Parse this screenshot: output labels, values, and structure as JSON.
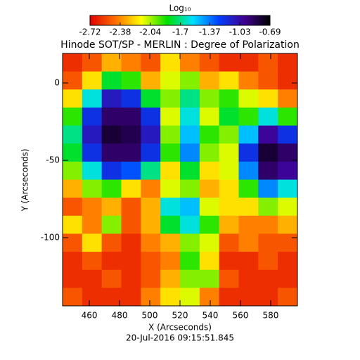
{
  "chart_data": {
    "type": "heatmap",
    "colorbar_title": "Log₁₀",
    "title": "Hinode SOT/SP - MERLIN : Degree of Polarization",
    "x_label": "X (Arcseconds)",
    "y_label": "Y (Arcseconds)",
    "footer": "20-Jul-2016 09:15:51.845",
    "xlim": [
      442.3,
      597.7
    ],
    "ylim": [
      -144.1,
      19.1
    ],
    "xticks": [
      460,
      480,
      500,
      520,
      540,
      560,
      580
    ],
    "yticks": [
      0,
      -50,
      -100
    ],
    "clim": [
      -2.72,
      -0.69
    ],
    "cticks": [
      -2.72,
      -2.38,
      -2.04,
      -1.7,
      -1.37,
      -1.03,
      -0.69
    ],
    "colorscale": [
      "#e00000",
      "#ff7000",
      "#ffff00",
      "#00e000",
      "#00e0ff",
      "#0040ff",
      "#400090",
      "#000000"
    ],
    "z": [
      [
        -2.6,
        -2.5,
        -2.3,
        -2.4,
        -2.5,
        -2.2,
        -2.4,
        -2.5,
        -2.6,
        -2.6,
        -2.5,
        -2.6
      ],
      [
        -2.5,
        -2.2,
        -1.8,
        -1.9,
        -2.3,
        -2.1,
        -2.0,
        -2.3,
        -2.2,
        -2.4,
        -2.5,
        -2.6
      ],
      [
        -2.2,
        -1.6,
        -1.1,
        -1.2,
        -1.8,
        -2.0,
        -1.7,
        -2.0,
        -1.9,
        -2.1,
        -2.2,
        -2.4
      ],
      [
        -1.9,
        -1.2,
        -0.9,
        -0.9,
        -1.2,
        -2.1,
        -1.6,
        -2.1,
        -1.8,
        -1.9,
        -1.6,
        -1.9
      ],
      [
        -1.7,
        -1.1,
        -0.8,
        -0.85,
        -1.1,
        -2.0,
        -1.5,
        -1.9,
        -2.0,
        -1.5,
        -1.0,
        -1.2
      ],
      [
        -1.8,
        -1.2,
        -0.9,
        -0.9,
        -1.2,
        -1.9,
        -1.4,
        -2.0,
        -2.1,
        -1.2,
        -0.8,
        -0.9
      ],
      [
        -2.0,
        -1.6,
        -1.2,
        -1.3,
        -1.7,
        -2.2,
        -1.8,
        -2.2,
        -2.1,
        -1.4,
        -0.9,
        -1.0
      ],
      [
        -2.3,
        -2.0,
        -1.9,
        -2.2,
        -2.4,
        -2.1,
        -2.0,
        -2.3,
        -2.2,
        -1.9,
        -1.4,
        -1.6
      ],
      [
        -2.5,
        -2.4,
        -2.3,
        -2.5,
        -2.3,
        -1.6,
        -1.5,
        -2.1,
        -2.2,
        -2.2,
        -2.0,
        -2.1
      ],
      [
        -2.2,
        -2.4,
        -2.0,
        -2.5,
        -2.3,
        -1.8,
        -1.6,
        -1.9,
        -2.3,
        -2.4,
        -2.4,
        -2.3
      ],
      [
        -2.5,
        -2.2,
        -2.5,
        -2.6,
        -2.4,
        -2.3,
        -2.0,
        -2.1,
        -2.5,
        -2.4,
        -2.5,
        -2.5
      ],
      [
        -2.6,
        -2.5,
        -2.6,
        -2.6,
        -2.5,
        -2.4,
        -1.9,
        -2.2,
        -2.6,
        -2.6,
        -2.5,
        -2.6
      ],
      [
        -2.6,
        -2.6,
        -2.5,
        -2.6,
        -2.5,
        -2.3,
        -2.0,
        -2.0,
        -2.5,
        -2.6,
        -2.6,
        -2.6
      ],
      [
        -2.5,
        -2.6,
        -2.6,
        -2.6,
        -2.4,
        -2.2,
        -2.1,
        -2.4,
        -2.6,
        -2.6,
        -2.6,
        -2.5
      ]
    ]
  }
}
